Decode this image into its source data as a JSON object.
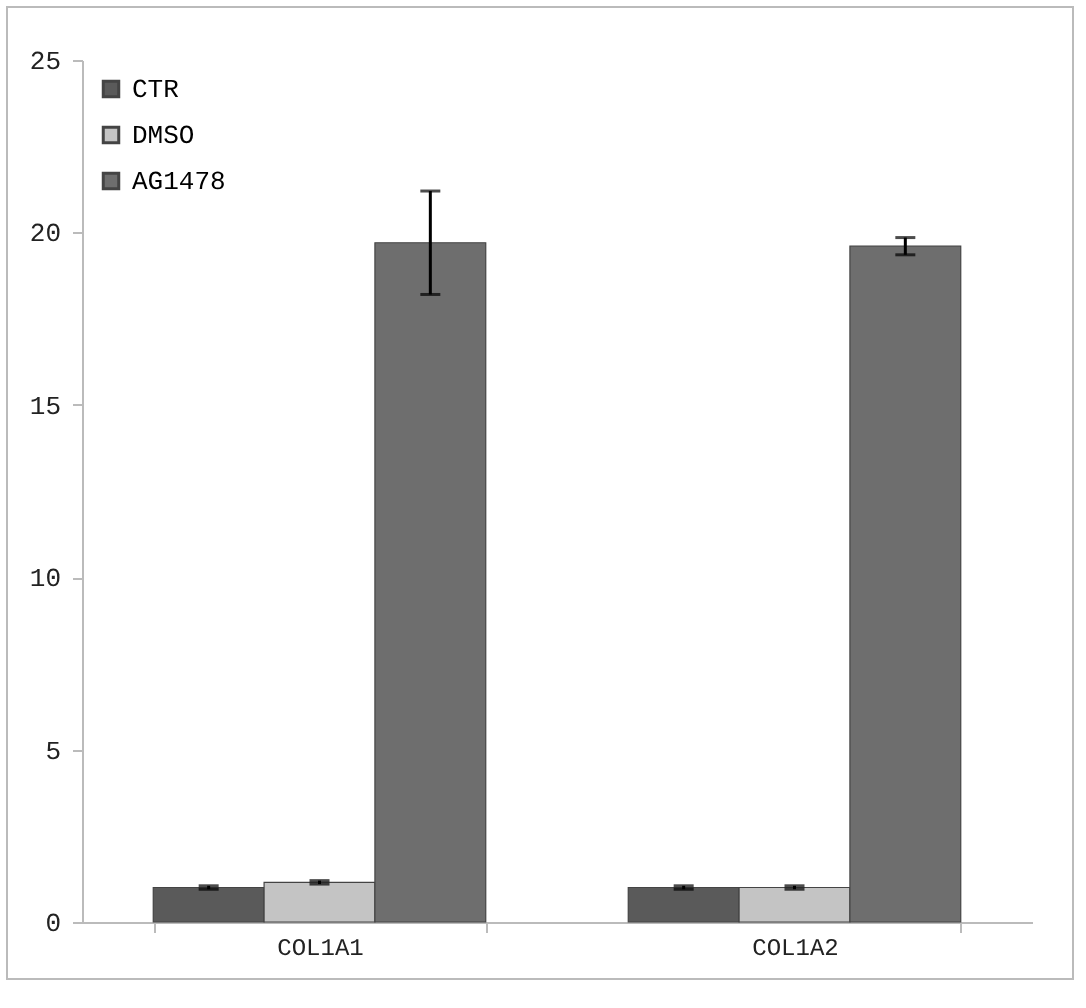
{
  "chart_data": {
    "type": "bar",
    "categories": [
      "COL1A1",
      "COL1A2"
    ],
    "series": [
      {
        "name": "CTR",
        "color": "#5a5a5a",
        "values": [
          1.0,
          1.0
        ],
        "errors": [
          0.05,
          0.05
        ]
      },
      {
        "name": "DMSO",
        "color": "#c4c4c4",
        "values": [
          1.15,
          1.0
        ],
        "errors": [
          0.05,
          0.05
        ]
      },
      {
        "name": "AG1478",
        "color": "#6e6e6e",
        "values": [
          19.7,
          19.6
        ],
        "errors": [
          1.5,
          0.25
        ]
      }
    ],
    "ylim": [
      0,
      25
    ],
    "yticks": [
      0,
      5,
      10,
      15,
      20,
      25
    ],
    "grid": false,
    "legend": "top left"
  }
}
